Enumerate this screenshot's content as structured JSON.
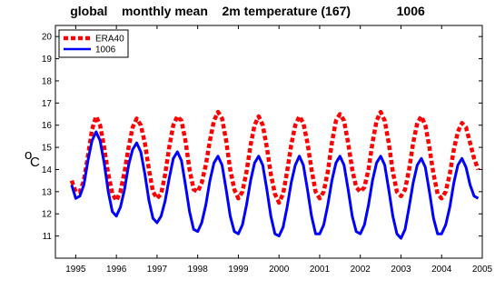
{
  "chart_data": {
    "type": "line",
    "title": "global    monthly mean    2m temperature (167)             1006",
    "ylabel_sup": "o",
    "ylabel_main": "C",
    "xlim": [
      1994.5,
      2005.0
    ],
    "ylim": [
      10,
      20.5
    ],
    "xticks": [
      1995,
      1996,
      1997,
      1998,
      1999,
      2000,
      2001,
      2002,
      2003,
      2004,
      2005
    ],
    "yticks": [
      11,
      12,
      13,
      14,
      15,
      16,
      17,
      18,
      19,
      20
    ],
    "grid": false,
    "legend_position": "top-left",
    "series": [
      {
        "name": "ERA40",
        "color": "#ff0000",
        "style": "dashed",
        "x": [
          1994.9,
          1995.0,
          1995.1,
          1995.2,
          1995.3,
          1995.4,
          1995.5,
          1995.6,
          1995.7,
          1995.8,
          1995.9,
          1996.0,
          1996.1,
          1996.2,
          1996.3,
          1996.4,
          1996.5,
          1996.6,
          1996.7,
          1996.8,
          1996.9,
          1997.0,
          1997.1,
          1997.2,
          1997.3,
          1997.4,
          1997.5,
          1997.6,
          1997.7,
          1997.8,
          1997.9,
          1998.0,
          1998.1,
          1998.2,
          1998.3,
          1998.4,
          1998.5,
          1998.6,
          1998.7,
          1998.8,
          1998.9,
          1999.0,
          1999.1,
          1999.2,
          1999.3,
          1999.4,
          1999.5,
          1999.6,
          1999.7,
          1999.8,
          1999.9,
          2000.0,
          2000.1,
          2000.2,
          2000.3,
          2000.4,
          2000.5,
          2000.6,
          2000.7,
          2000.8,
          2000.9,
          2001.0,
          2001.1,
          2001.2,
          2001.3,
          2001.4,
          2001.5,
          2001.6,
          2001.7,
          2001.8,
          2001.9,
          2002.0,
          2002.1,
          2002.2,
          2002.3,
          2002.4,
          2002.5,
          2002.6,
          2002.7,
          2002.8,
          2002.9,
          2003.0,
          2003.1,
          2003.2,
          2003.3,
          2003.4,
          2003.5,
          2003.6,
          2003.7,
          2003.8,
          2003.9,
          2004.0,
          2004.1,
          2004.2,
          2004.3,
          2004.4,
          2004.5,
          2004.6,
          2004.7,
          2004.8,
          2004.9
        ],
        "values": [
          13.5,
          13.0,
          13.0,
          13.5,
          14.6,
          15.8,
          16.4,
          16.0,
          15.0,
          13.8,
          12.9,
          12.6,
          13.0,
          13.9,
          15.0,
          15.9,
          16.3,
          16.0,
          15.2,
          14.0,
          13.0,
          12.7,
          12.9,
          13.8,
          15.0,
          16.0,
          16.4,
          16.2,
          15.3,
          14.0,
          13.1,
          13.0,
          13.4,
          14.2,
          15.3,
          16.2,
          16.6,
          16.3,
          15.3,
          14.0,
          13.1,
          12.7,
          13.0,
          13.9,
          15.1,
          16.0,
          16.4,
          16.0,
          15.0,
          13.8,
          12.9,
          12.5,
          12.9,
          13.9,
          15.1,
          16.0,
          16.4,
          16.1,
          15.2,
          14.0,
          13.0,
          12.7,
          13.0,
          13.9,
          15.2,
          16.2,
          16.5,
          16.2,
          15.2,
          14.0,
          13.2,
          13.0,
          13.2,
          14.0,
          15.2,
          16.2,
          16.6,
          16.2,
          15.2,
          13.9,
          13.0,
          12.8,
          13.1,
          14.0,
          15.2,
          16.1,
          16.4,
          16.0,
          15.0,
          13.8,
          12.9,
          12.7,
          13.0,
          13.8,
          14.9,
          15.7,
          16.1,
          15.9,
          15.2,
          14.5,
          14.0
        ],
        "values_note": ""
      },
      {
        "name": "1006",
        "color": "#0000ff",
        "style": "solid",
        "x": [
          1994.9,
          1995.0,
          1995.1,
          1995.2,
          1995.3,
          1995.4,
          1995.5,
          1995.6,
          1995.7,
          1995.8,
          1995.9,
          1996.0,
          1996.1,
          1996.2,
          1996.3,
          1996.4,
          1996.5,
          1996.6,
          1996.7,
          1996.8,
          1996.9,
          1997.0,
          1997.1,
          1997.2,
          1997.3,
          1997.4,
          1997.5,
          1997.6,
          1997.7,
          1997.8,
          1997.9,
          1998.0,
          1998.1,
          1998.2,
          1998.3,
          1998.4,
          1998.5,
          1998.6,
          1998.7,
          1998.8,
          1998.9,
          1999.0,
          1999.1,
          1999.2,
          1999.3,
          1999.4,
          1999.5,
          1999.6,
          1999.7,
          1999.8,
          1999.9,
          2000.0,
          2000.1,
          2000.2,
          2000.3,
          2000.4,
          2000.5,
          2000.6,
          2000.7,
          2000.8,
          2000.9,
          2001.0,
          2001.1,
          2001.2,
          2001.3,
          2001.4,
          2001.5,
          2001.6,
          2001.7,
          2001.8,
          2001.9,
          2002.0,
          2002.1,
          2002.2,
          2002.3,
          2002.4,
          2002.5,
          2002.6,
          2002.7,
          2002.8,
          2002.9,
          2003.0,
          2003.1,
          2003.2,
          2003.3,
          2003.4,
          2003.5,
          2003.6,
          2003.7,
          2003.8,
          2003.9,
          2004.0,
          2004.1,
          2004.2,
          2004.3,
          2004.4,
          2004.5,
          2004.6,
          2004.7,
          2004.8,
          2004.9
        ],
        "values": [
          13.3,
          12.7,
          12.8,
          13.3,
          14.4,
          15.3,
          15.7,
          15.3,
          14.3,
          13.0,
          12.1,
          11.9,
          12.3,
          13.1,
          14.2,
          14.9,
          15.2,
          14.8,
          13.8,
          12.6,
          11.8,
          11.6,
          11.9,
          12.6,
          13.6,
          14.5,
          14.8,
          14.4,
          13.3,
          12.1,
          11.3,
          11.2,
          11.6,
          12.4,
          13.5,
          14.3,
          14.6,
          14.2,
          13.1,
          11.9,
          11.2,
          11.1,
          11.5,
          12.4,
          13.5,
          14.3,
          14.6,
          14.2,
          13.1,
          11.9,
          11.1,
          11.0,
          11.4,
          12.3,
          13.4,
          14.2,
          14.6,
          14.2,
          13.1,
          11.9,
          11.1,
          11.1,
          11.5,
          12.4,
          13.5,
          14.3,
          14.6,
          14.2,
          13.1,
          11.9,
          11.2,
          11.1,
          11.5,
          12.4,
          13.5,
          14.3,
          14.6,
          14.2,
          13.1,
          11.9,
          11.1,
          10.9,
          11.3,
          12.3,
          13.4,
          14.2,
          14.5,
          14.1,
          13.0,
          11.8,
          11.1,
          11.1,
          11.5,
          12.3,
          13.4,
          14.2,
          14.5,
          14.1,
          13.3,
          12.8,
          12.7
        ],
        "values_note": ""
      }
    ]
  }
}
